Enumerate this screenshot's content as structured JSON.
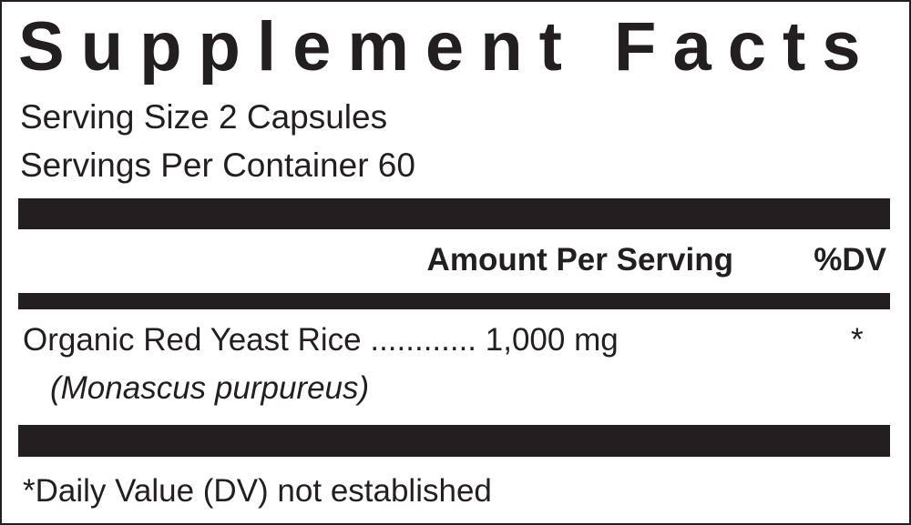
{
  "title": "Supplement Facts",
  "serving_size": "Serving Size 2 Capsules",
  "servings_per_container": "Servings Per Container 60",
  "header": {
    "amount": "Amount Per Serving",
    "dv": "%DV"
  },
  "ingredients": [
    {
      "name": "Organic Red Yeast Rice",
      "dots": "............",
      "amount": "1,000 mg",
      "dv": "*",
      "subname": "(Monascus purpureus)"
    }
  ],
  "footnote": "*Daily Value (DV) not established",
  "colors": {
    "ink": "#231f20",
    "background": "#ffffff"
  }
}
